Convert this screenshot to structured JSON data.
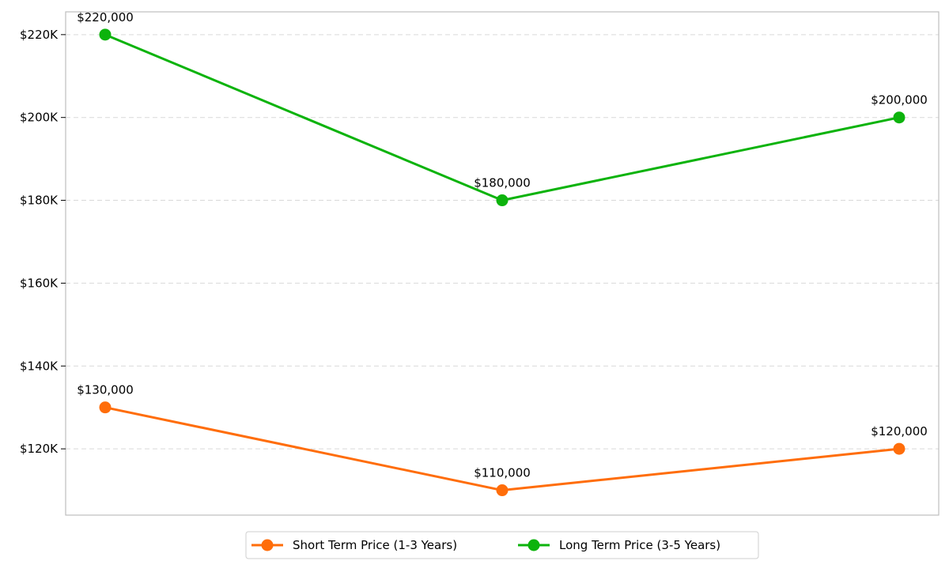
{
  "chart_data": {
    "type": "line",
    "title": "",
    "xlabel": "",
    "ylabel": "",
    "x": [
      0,
      1,
      2
    ],
    "ylim": [
      104000,
      225500
    ],
    "yticks": [
      120000,
      140000,
      160000,
      180000,
      200000,
      220000
    ],
    "ytick_labels": [
      "$120K",
      "$140K",
      "$160K",
      "$180K",
      "$200K",
      "$220K"
    ],
    "grid": "horizontal dashed",
    "legend_position": "bottom-center",
    "series": [
      {
        "name": "Short Term Price (1-3 Years)",
        "color": "#ff6d0a",
        "values": [
          130000,
          110000,
          120000
        ],
        "labels": [
          "$130,000",
          "$110,000",
          "$120,000"
        ]
      },
      {
        "name": "Long Term Price (3-5 Years)",
        "color": "#0cb30c",
        "values": [
          220000,
          180000,
          200000
        ],
        "labels": [
          "$220,000",
          "$180,000",
          "$200,000"
        ]
      }
    ]
  }
}
